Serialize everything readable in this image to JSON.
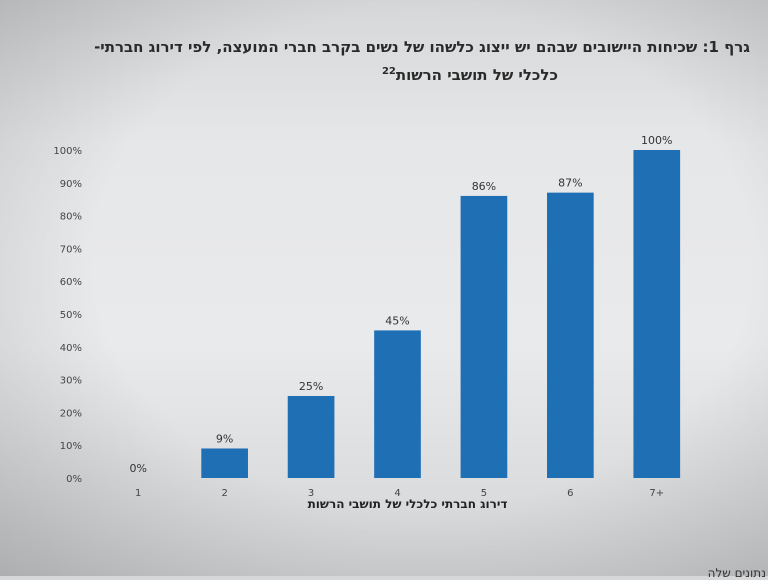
{
  "chart_data": {
    "type": "bar",
    "title_prefix": "גרף 1:",
    "title_line1": "שכיחות היישובים שבהם יש ייצוג כלשהו של נשים בקרב חברי המועצה, לפי דירוג חברתי-",
    "title_line2": "כלכלי של תושבי הרשות",
    "title_footnote": "22",
    "categories": [
      "1",
      "2",
      "3",
      "4",
      "5",
      "6",
      "7+"
    ],
    "values": [
      0,
      9,
      25,
      45,
      86,
      87,
      100
    ],
    "value_labels": [
      "0%",
      "9%",
      "25%",
      "45%",
      "86%",
      "87%",
      "100%"
    ],
    "y_ticks": [
      "0%",
      "10%",
      "20%",
      "30%",
      "40%",
      "50%",
      "60%",
      "70%",
      "80%",
      "90%",
      "100%"
    ],
    "ylim": [
      0,
      100
    ],
    "xlabel": "דירוג חברתי כלכלי של תושבי הרשות",
    "ylabel": "",
    "bar_color": "#1f6fb5",
    "grid": false,
    "legend": "none"
  },
  "page_footer_fragment": "נתונים שלה"
}
